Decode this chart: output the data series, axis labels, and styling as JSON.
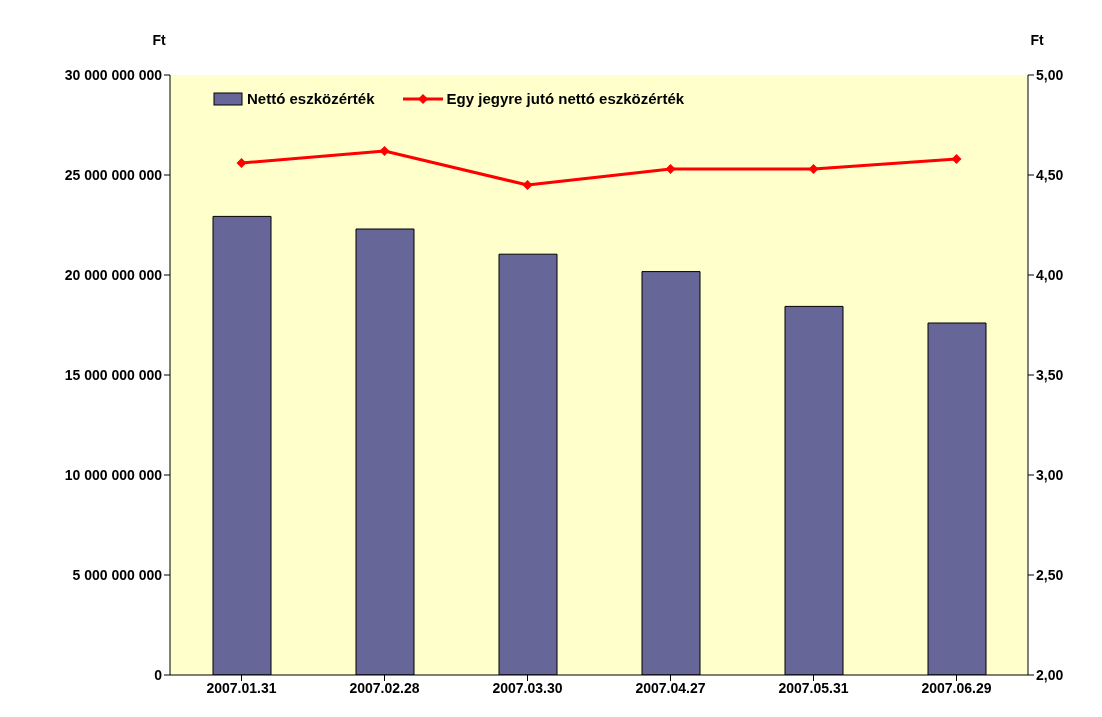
{
  "chart_data": {
    "type": "bar",
    "categories": [
      "2007.01.31",
      "2007.02.28",
      "2007.03.30",
      "2007.04.27",
      "2007.05.31",
      "2007.06.29"
    ],
    "series": [
      {
        "name": "Nettó eszközérték",
        "color": "#666699",
        "values": [
          22930000000,
          22300000000,
          21040000000,
          20170000000,
          18430000000,
          17600000000
        ]
      },
      {
        "name": "Egy jegyre jutó nettó eszközérték",
        "type": "line",
        "axis": "y2",
        "color": "#ff0000",
        "marker": "diamond",
        "values": [
          4.56,
          4.62,
          4.45,
          4.53,
          4.53,
          4.58
        ]
      }
    ],
    "ylabel": "Ft",
    "y2label": "Ft",
    "ylim": [
      0,
      30000000000
    ],
    "yticks": [
      0,
      {
        "value": 5000000000,
        "label": "5 000 000 000"
      },
      {
        "value": 10000000000,
        "label": "10 000 000 000"
      },
      {
        "value": 15000000000,
        "label": "15 000 000 000"
      },
      {
        "value": 20000000000,
        "label": "20 000 000 000"
      },
      {
        "value": 25000000000,
        "label": "25 000 000 000"
      },
      {
        "value": 30000000000,
        "label": "30 000 000 000"
      }
    ],
    "y2lim": [
      2,
      5
    ],
    "y2ticks": [
      {
        "value": 2,
        "label": "2,00"
      },
      {
        "value": 2.5,
        "label": "2,50"
      },
      {
        "value": 3,
        "label": "3,00"
      },
      {
        "value": 3.5,
        "label": "3,50"
      },
      {
        "value": 4,
        "label": "4,00"
      },
      {
        "value": 4.5,
        "label": "4,50"
      },
      {
        "value": 5,
        "label": "5,00"
      }
    ],
    "legend": "top left"
  }
}
